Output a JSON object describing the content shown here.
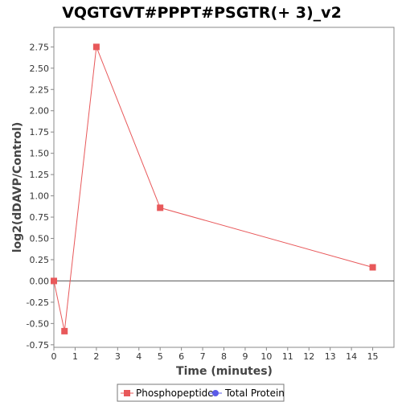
{
  "chart_data": {
    "type": "line",
    "title": "VQGTGVT#PPPT#PSGTR(+ 3)_v2",
    "xlabel": "Time (minutes)",
    "ylabel": "log2(dDAVP/Control)",
    "xlim": [
      0,
      16
    ],
    "ylim": [
      -0.78,
      2.98
    ],
    "x_ticks": [
      0,
      1,
      2,
      3,
      4,
      5,
      6,
      7,
      8,
      9,
      10,
      11,
      12,
      13,
      14,
      15
    ],
    "y_ticks": [
      -0.75,
      -0.5,
      -0.25,
      0.0,
      0.25,
      0.5,
      0.75,
      1.0,
      1.25,
      1.5,
      1.75,
      2.0,
      2.25,
      2.5,
      2.75
    ],
    "grid": false,
    "zero_line": true,
    "legend_position": "bottom",
    "series": [
      {
        "name": "Phosphopeptide",
        "color": "#e8585a",
        "marker": "square",
        "x": [
          0,
          0.5,
          2,
          5,
          15
        ],
        "y": [
          0.0,
          -0.59,
          2.75,
          0.86,
          0.16
        ]
      }
    ],
    "legend": [
      {
        "label": "Phosphopeptide",
        "color": "#e8585a",
        "marker": "square"
      },
      {
        "label": "Total Protein",
        "color": "#5a5ae8",
        "marker": "circle"
      }
    ]
  }
}
